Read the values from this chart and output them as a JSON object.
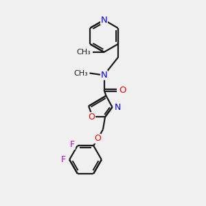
{
  "bg_color": "#f0f0f0",
  "bond_color": "#1a1a1a",
  "N_color": "#0000ff",
  "O_color": "#ff0000",
  "F_color": "#cc00cc",
  "line_width": 1.6,
  "font_size": 8.5,
  "fig_w": 3.0,
  "fig_h": 3.0,
  "dpi": 100,
  "xlim": [
    0,
    10
  ],
  "ylim": [
    0,
    10
  ]
}
